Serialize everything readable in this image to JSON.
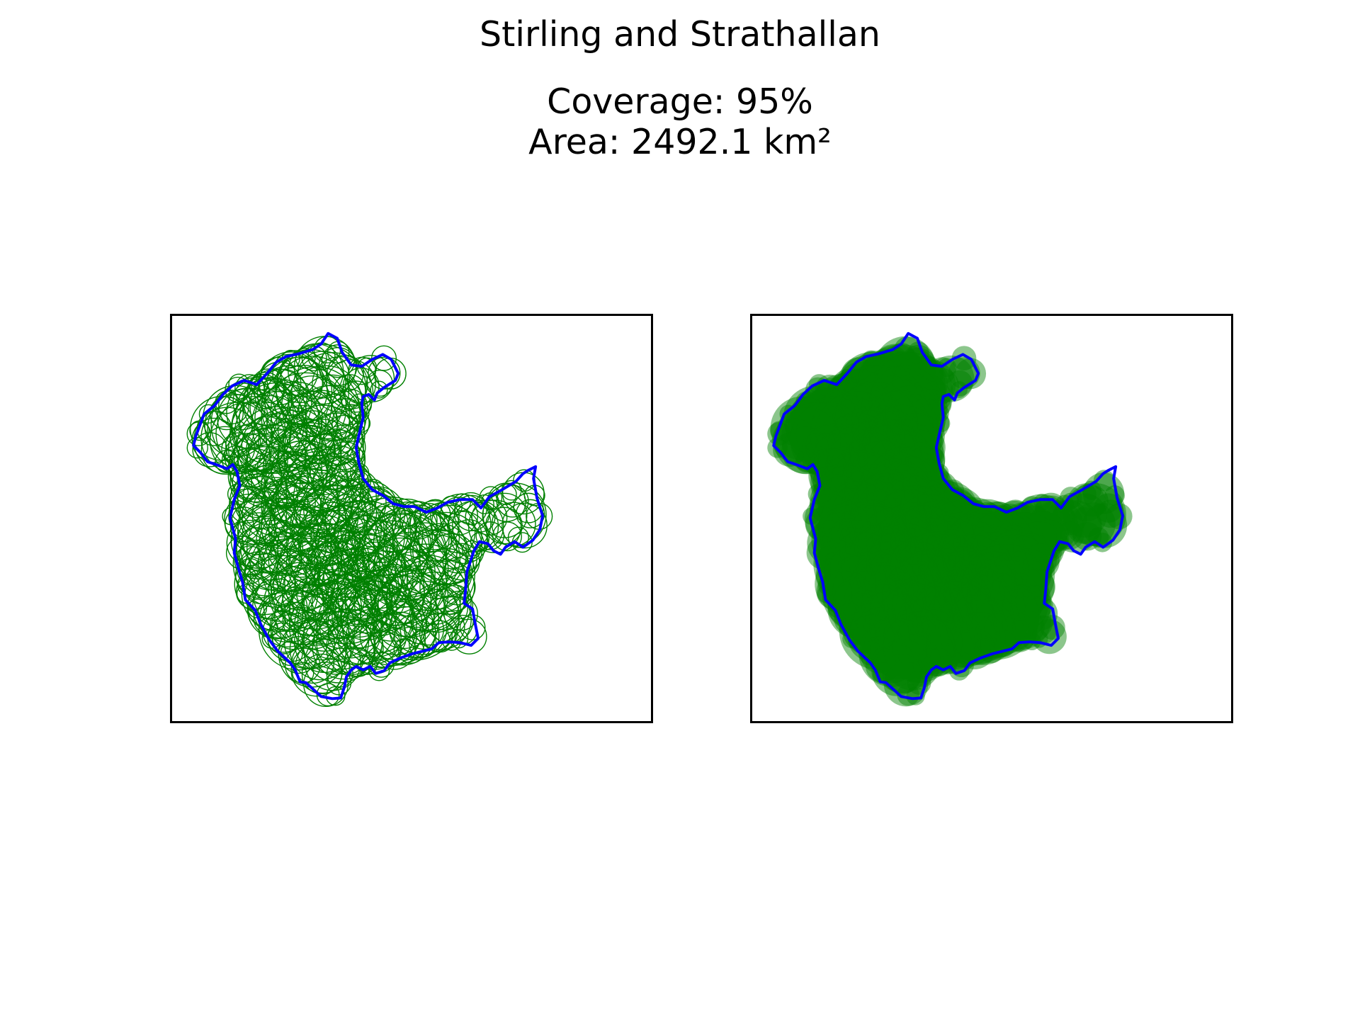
{
  "region_name": "Stirling and Strathallan",
  "coverage_text": "Coverage: 95%",
  "area_text": "Area: 2492.1 km²",
  "colors": {
    "boundary": "#0000ff",
    "circle": "#008000",
    "panel_border": "#000000"
  },
  "panels": [
    {
      "name": "outline-circles",
      "fill": false
    },
    {
      "name": "filled-circles",
      "fill": true
    }
  ]
}
